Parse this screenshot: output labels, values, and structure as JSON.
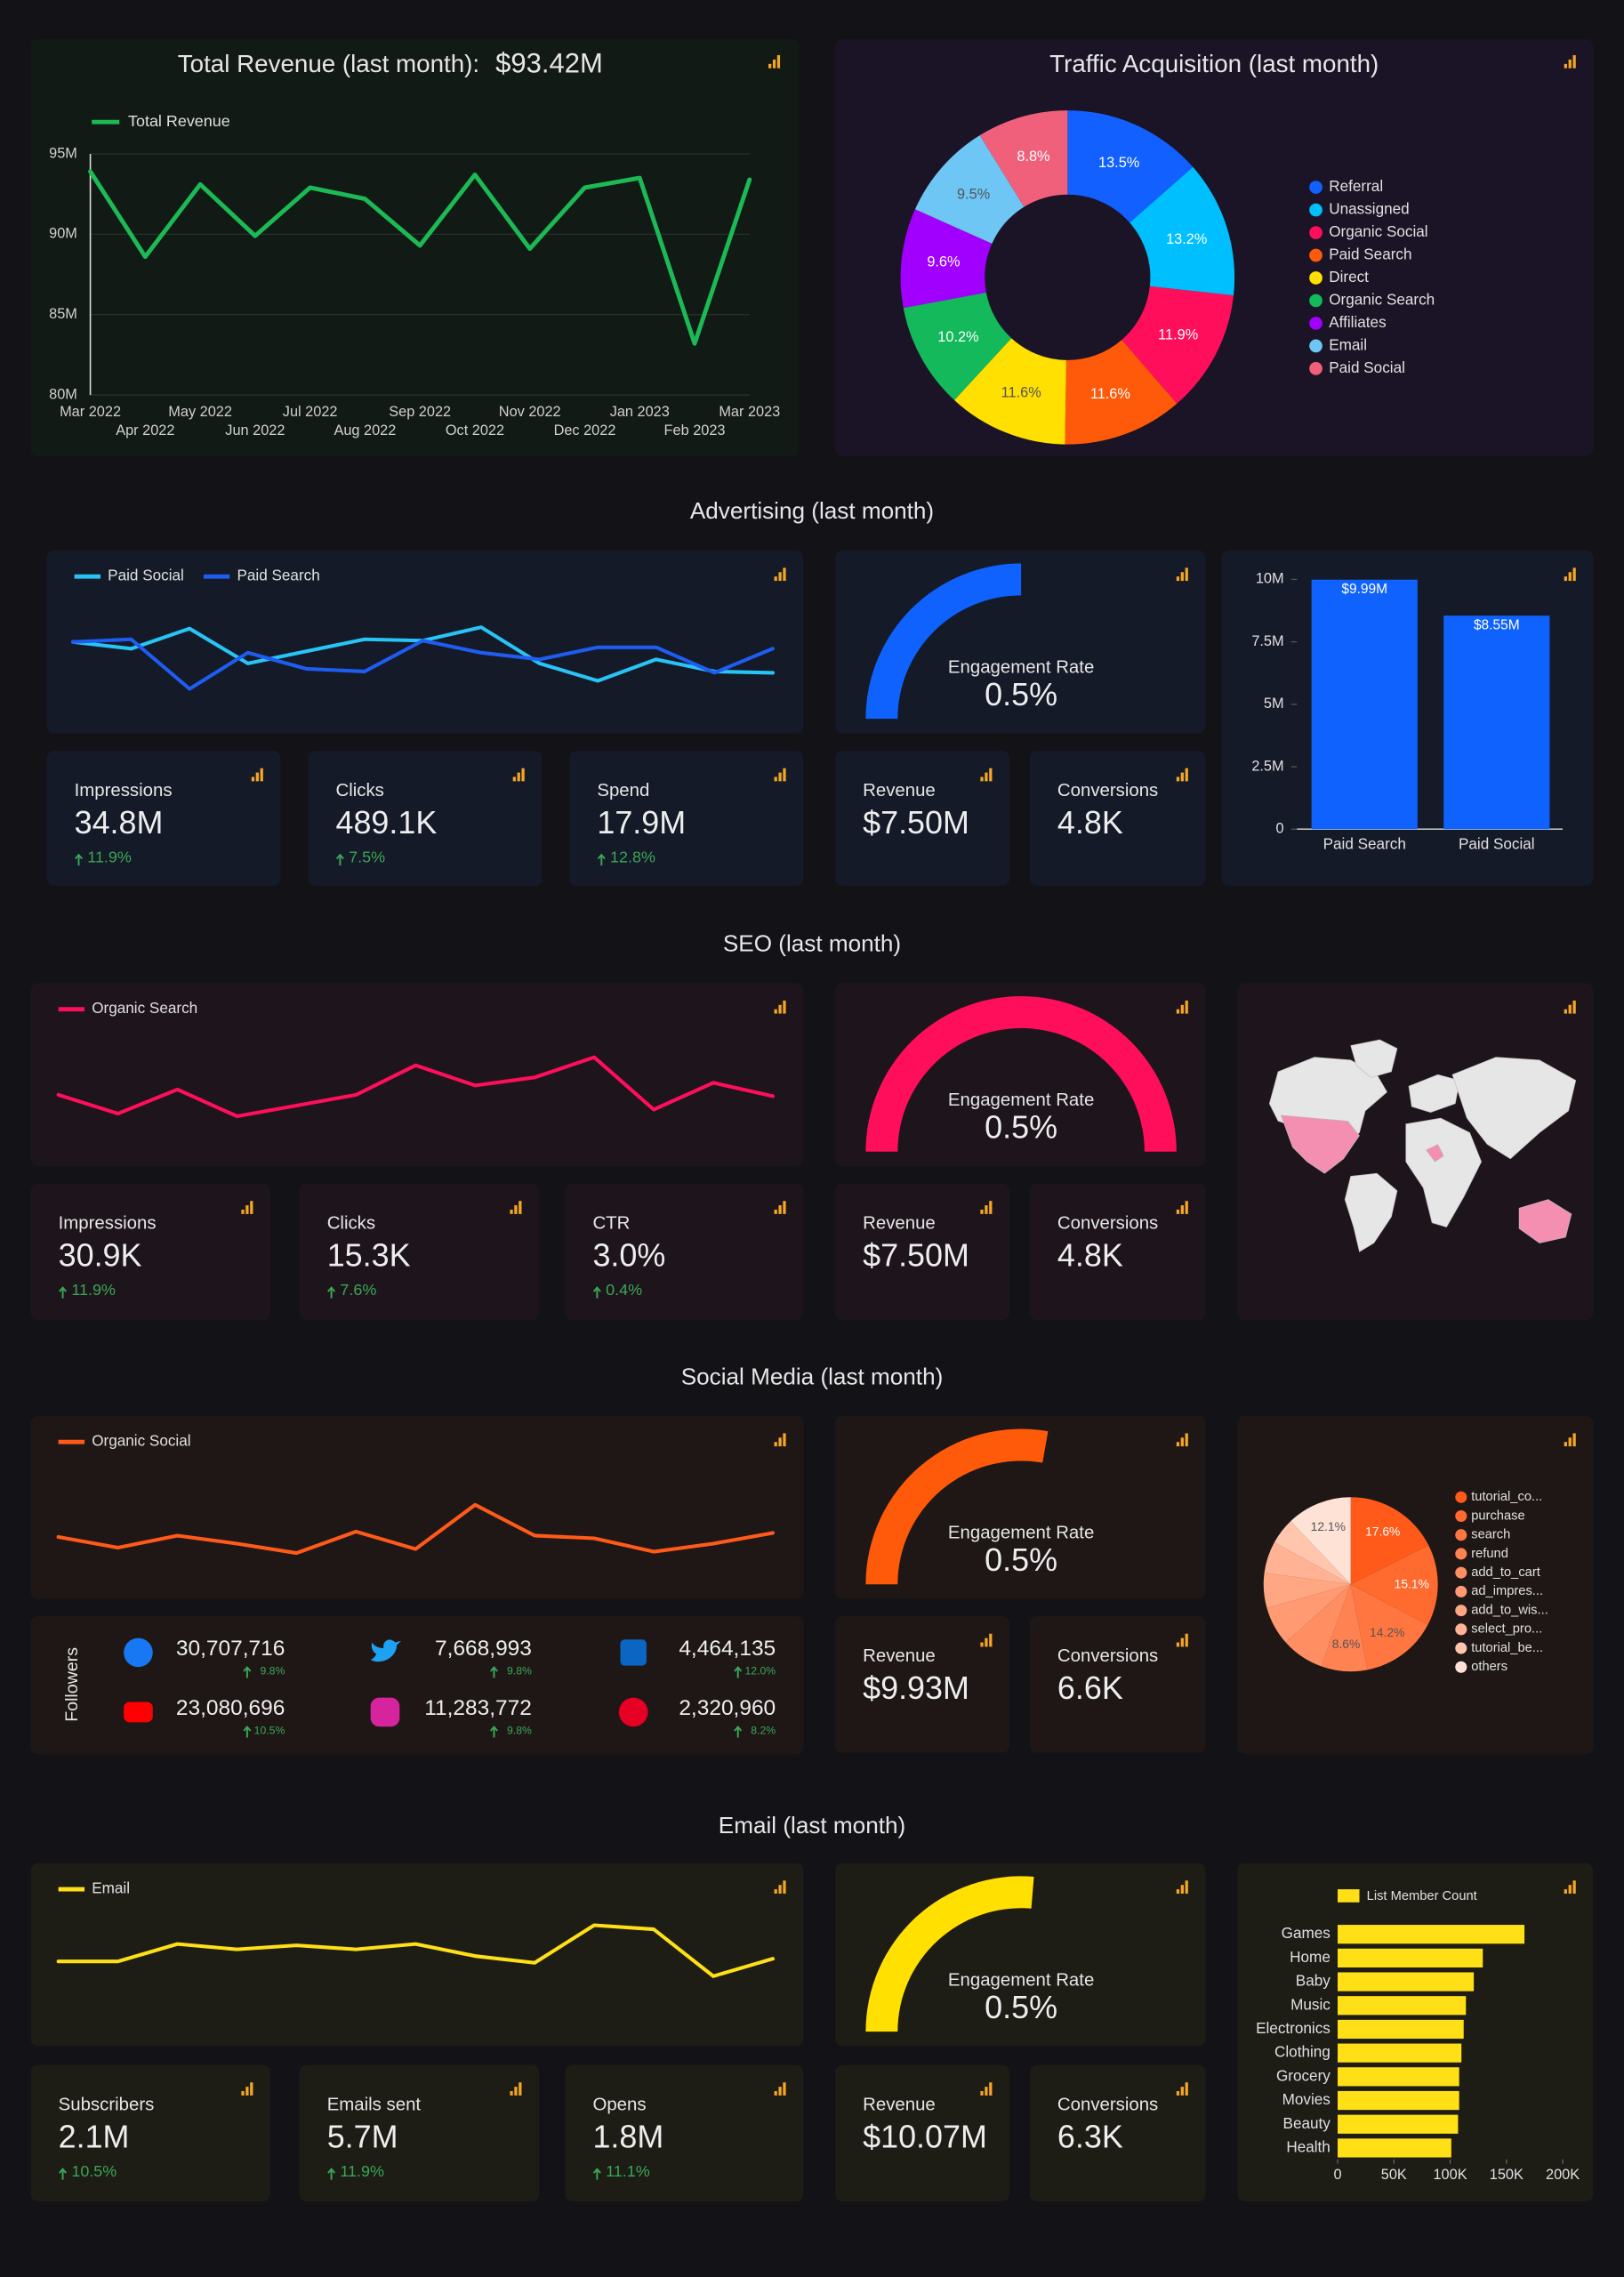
{
  "revenue": {
    "title": "Total Revenue (last month):",
    "total": "$93.42M",
    "chart": {
      "type": "line",
      "x": [
        "Mar 2022",
        "Apr 2022",
        "May 2022",
        "Jun 2022",
        "Jul 2022",
        "Aug 2022",
        "Sep 2022",
        "Oct 2022",
        "Nov 2022",
        "Dec 2022",
        "Jan 2023",
        "Feb 2023",
        "Mar 2023"
      ],
      "series": [
        {
          "name": "Total Revenue",
          "color": "#1db954",
          "values": [
            93.9,
            88.6,
            93.1,
            89.9,
            92.9,
            92.2,
            89.3,
            93.7,
            89.1,
            92.9,
            93.5,
            83.2,
            93.4
          ]
        }
      ],
      "ylim": [
        80,
        95.5
      ],
      "yticks": [
        {
          "value": 80,
          "label": "80M"
        },
        {
          "value": 85,
          "label": "85M"
        },
        {
          "value": 90,
          "label": "90M"
        },
        {
          "value": 95,
          "label": "95M"
        }
      ],
      "grid": true
    }
  },
  "traffic": {
    "title": "Traffic Acquisition (last month)",
    "chart": {
      "type": "donut",
      "categories": [
        "Referral",
        "Unassigned",
        "Organic Social",
        "Paid Search",
        "Direct",
        "Organic Search",
        "Affiliates",
        "Email",
        "Paid Social"
      ],
      "values": [
        13.5,
        13.2,
        11.9,
        11.6,
        11.6,
        10.2,
        9.6,
        9.5,
        8.8
      ],
      "value_labels": [
        "13.5%",
        "13.2%",
        "11.9%",
        "11.6%",
        "11.6%",
        "10.2%",
        "9.6%",
        "9.5%",
        "8.8%"
      ],
      "colors": [
        "#1160ff",
        "#00bfff",
        "#ff0f5b",
        "#ff5a0a",
        "#ffe000",
        "#13b95a",
        "#a100ff",
        "#6ec6f5",
        "#f0607a"
      ]
    }
  },
  "advertising": {
    "title": "Advertising (last month)",
    "line": {
      "type": "line",
      "ylim": [
        0,
        65
      ],
      "series": [
        {
          "name": "Paid Social",
          "color": "#29c4f6",
          "values": [
            40,
            35,
            50,
            24,
            33,
            42,
            41,
            51,
            24,
            11,
            27,
            18,
            17
          ]
        },
        {
          "name": "Paid Search",
          "color": "#1f5cf0",
          "values": [
            40,
            42,
            5,
            32,
            20,
            18,
            41,
            32,
            27,
            36,
            36,
            17,
            35
          ]
        }
      ]
    },
    "gauge": {
      "type": "gauge",
      "label": "Engagement Rate",
      "value": 0.5,
      "value_label": "0.5%",
      "max": 1,
      "color": "#0f62fe"
    },
    "chart": {
      "type": "bar",
      "categories": [
        "Paid Search",
        "Paid Social"
      ],
      "values": [
        9.99,
        8.55
      ],
      "value_labels": [
        "$9.99M",
        "$8.55M"
      ],
      "color": "#0f62fe",
      "ylim": [
        0,
        10
      ],
      "yticks": [
        0,
        {
          "value": 2.5,
          "label": "2.5M"
        },
        {
          "value": 5,
          "label": "5M"
        },
        {
          "value": 7.5,
          "label": "7.5M"
        },
        {
          "value": 10,
          "label": "10M"
        }
      ]
    },
    "kpis": [
      {
        "label": "Impressions",
        "value": "34.8M",
        "change": "11.9%"
      },
      {
        "label": "Clicks",
        "value": "489.1K",
        "change": "7.5%"
      },
      {
        "label": "Spend",
        "value": "17.9M",
        "change": "12.8%"
      }
    ],
    "revenue": {
      "label": "Revenue",
      "value": "$7.50M"
    },
    "conversions": {
      "label": "Conversions",
      "value": "4.8K"
    }
  },
  "seo": {
    "title": "SEO (last month)",
    "line": {
      "type": "line",
      "ylim": [
        0,
        65
      ],
      "series": [
        {
          "name": "Organic Search",
          "color": "#ff0f5b",
          "values": [
            25,
            11,
            29,
            9,
            17,
            25,
            47,
            32,
            38,
            53,
            14,
            34,
            24
          ]
        }
      ]
    },
    "gauge": {
      "type": "gauge",
      "label": "Engagement Rate",
      "value": 0.5,
      "value_label": "0.5%",
      "max": 0.5,
      "color": "#ff0f5b"
    },
    "kpis": [
      {
        "label": "Impressions",
        "value": "30.9K",
        "change": "11.9%"
      },
      {
        "label": "Clicks",
        "value": "15.3K",
        "change": "7.6%"
      },
      {
        "label": "CTR",
        "value": "3.0%",
        "change": "0.4%"
      }
    ],
    "revenue": {
      "label": "Revenue",
      "value": "$7.50M"
    },
    "conversions": {
      "label": "Conversions",
      "value": "4.8K"
    }
  },
  "social": {
    "title": "Social Media (last month)",
    "line": {
      "type": "line",
      "ylim": [
        0,
        65
      ],
      "series": [
        {
          "name": "Organic Social",
          "color": "#ff5a1a",
          "values": [
            18,
            10,
            19,
            13,
            6,
            22,
            9,
            42,
            19,
            17,
            7,
            13,
            21
          ]
        }
      ]
    },
    "gauge": {
      "type": "gauge",
      "label": "Engagement Rate",
      "value": 0.5,
      "value_label": "0.5%",
      "max": 0.9,
      "color": "#ff5a0a"
    },
    "followers": {
      "label": "Followers",
      "accounts": [
        {
          "count": "30,707,716",
          "change": "9.8%"
        },
        {
          "count": "7,668,993",
          "change": "9.8%"
        },
        {
          "count": "4,464,135",
          "change": "12.0%"
        },
        {
          "count": "23,080,696",
          "change": "10.5%"
        },
        {
          "count": "11,283,772",
          "change": "9.8%"
        },
        {
          "count": "2,320,960",
          "change": "8.2%"
        }
      ]
    },
    "chart": {
      "type": "pie",
      "categories": [
        "tutorial_co...",
        "purchase",
        "search",
        "refund",
        "add_to_cart",
        "ad_impres...",
        "add_to_wis...",
        "select_pro...",
        "tutorial_be...",
        "others"
      ],
      "values": [
        17.6,
        15.1,
        14.2,
        8.6,
        7.9,
        7.2,
        6.5,
        5.9,
        4.9,
        12.1
      ],
      "value_labels": [
        "17.6%",
        "15.1%",
        "14.2%",
        "8.6%",
        null,
        null,
        null,
        null,
        null,
        "12.1%"
      ],
      "colors": [
        "#ff5a1a",
        "#ff6a2e",
        "#ff7640",
        "#ff8252",
        "#ff8e62",
        "#ff9a72",
        "#ffa683",
        "#ffb394",
        "#ffc6ad",
        "#ffe2d6"
      ]
    },
    "revenue": {
      "label": "Revenue",
      "value": "$9.93M"
    },
    "conversions": {
      "label": "Conversions",
      "value": "6.6K"
    }
  },
  "email": {
    "title": "Email (last month)",
    "line": {
      "type": "line",
      "ylim": [
        0,
        65
      ],
      "series": [
        {
          "name": "Email",
          "color": "#ffe016",
          "values": [
            35,
            35,
            48,
            44,
            47,
            44,
            48,
            39,
            34,
            62,
            59,
            24,
            37
          ]
        }
      ]
    },
    "gauge": {
      "type": "gauge",
      "label": "Engagement Rate",
      "value": 0.5,
      "value_label": "0.5%",
      "max": 0.95,
      "color": "#ffe000"
    },
    "chart": {
      "type": "hbar",
      "categories": [
        "Games",
        "Home",
        "Baby",
        "Music",
        "Electronics",
        "Clothing",
        "Grocery",
        "Movies",
        "Beauty",
        "Health"
      ],
      "series": [
        {
          "name": "List Member Count",
          "color": "#ffe016",
          "values": [
            166000,
            129000,
            121000,
            114000,
            112000,
            110000,
            108000,
            108000,
            107000,
            101000
          ]
        }
      ],
      "xlim": [
        0,
        200000
      ],
      "xticks": [
        0,
        {
          "value": 50000,
          "label": "50K"
        },
        {
          "value": 100000,
          "label": "100K"
        },
        {
          "value": 150000,
          "label": "150K"
        },
        {
          "value": 200000,
          "label": "200K"
        }
      ]
    },
    "kpis": [
      {
        "label": "Subscribers",
        "value": "2.1M",
        "change": "10.5%"
      },
      {
        "label": "Emails sent",
        "value": "5.7M",
        "change": "11.9%"
      },
      {
        "label": "Opens",
        "value": "1.8M",
        "change": "11.1%"
      }
    ],
    "revenue": {
      "label": "Revenue",
      "value": "$10.07M"
    },
    "conversions": {
      "label": "Conversions",
      "value": "6.3K"
    }
  }
}
